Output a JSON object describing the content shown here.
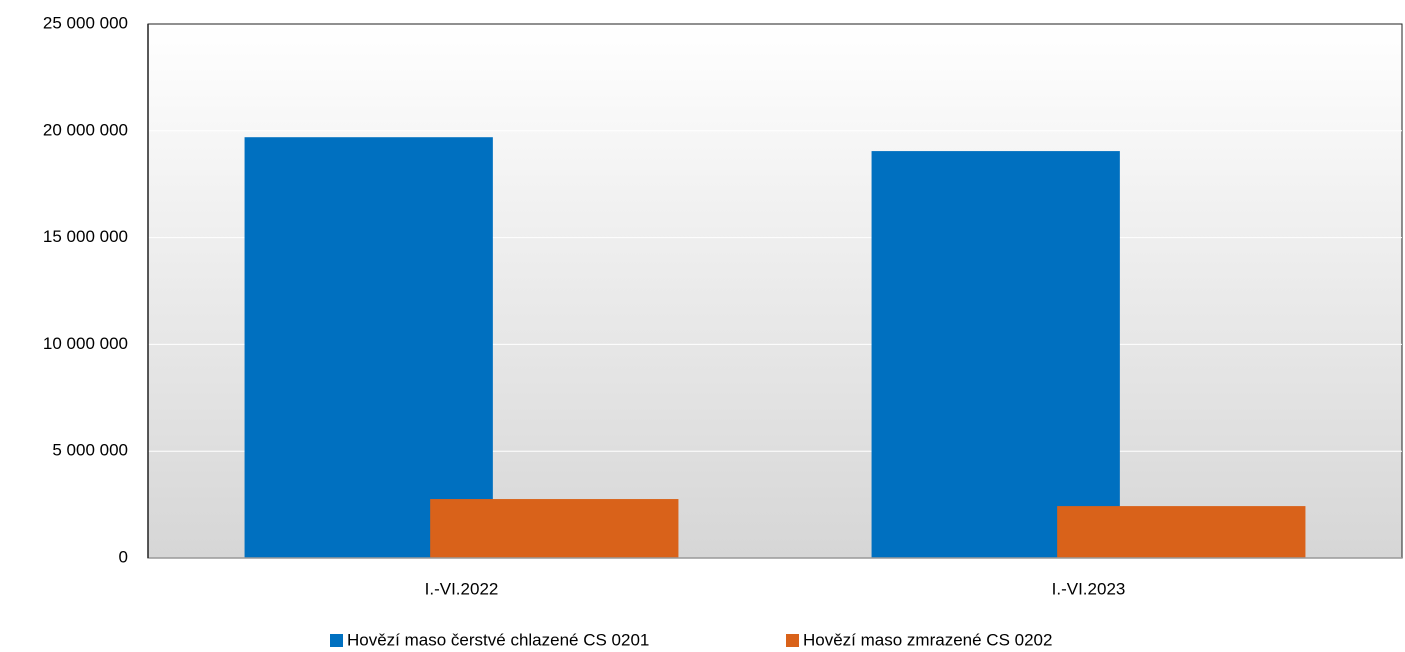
{
  "chart_data": {
    "type": "bar",
    "categories": [
      "I.-VI.2022",
      "I.-VI.2023"
    ],
    "series": [
      {
        "name": "Hovězí maso čerstvé chlazené CS 0201",
        "color": "#0070c0",
        "values": [
          19700000,
          19050000
        ]
      },
      {
        "name": "Hovězí maso zmrazené CS 0202",
        "color": "#d9621a",
        "values": [
          2760000,
          2430000
        ]
      }
    ],
    "ylim": [
      0,
      25000000
    ],
    "yticks": [
      0,
      {
        "value": 5000000,
        "label": "5 000 000"
      },
      {
        "value": 10000000,
        "label": "10 000 000"
      },
      {
        "value": 15000000,
        "label": "15 000 000"
      },
      {
        "value": 20000000,
        "label": "20 000 000"
      },
      {
        "value": 25000000,
        "label": "25 000 000"
      }
    ],
    "grid": true,
    "legend": "bottom"
  }
}
